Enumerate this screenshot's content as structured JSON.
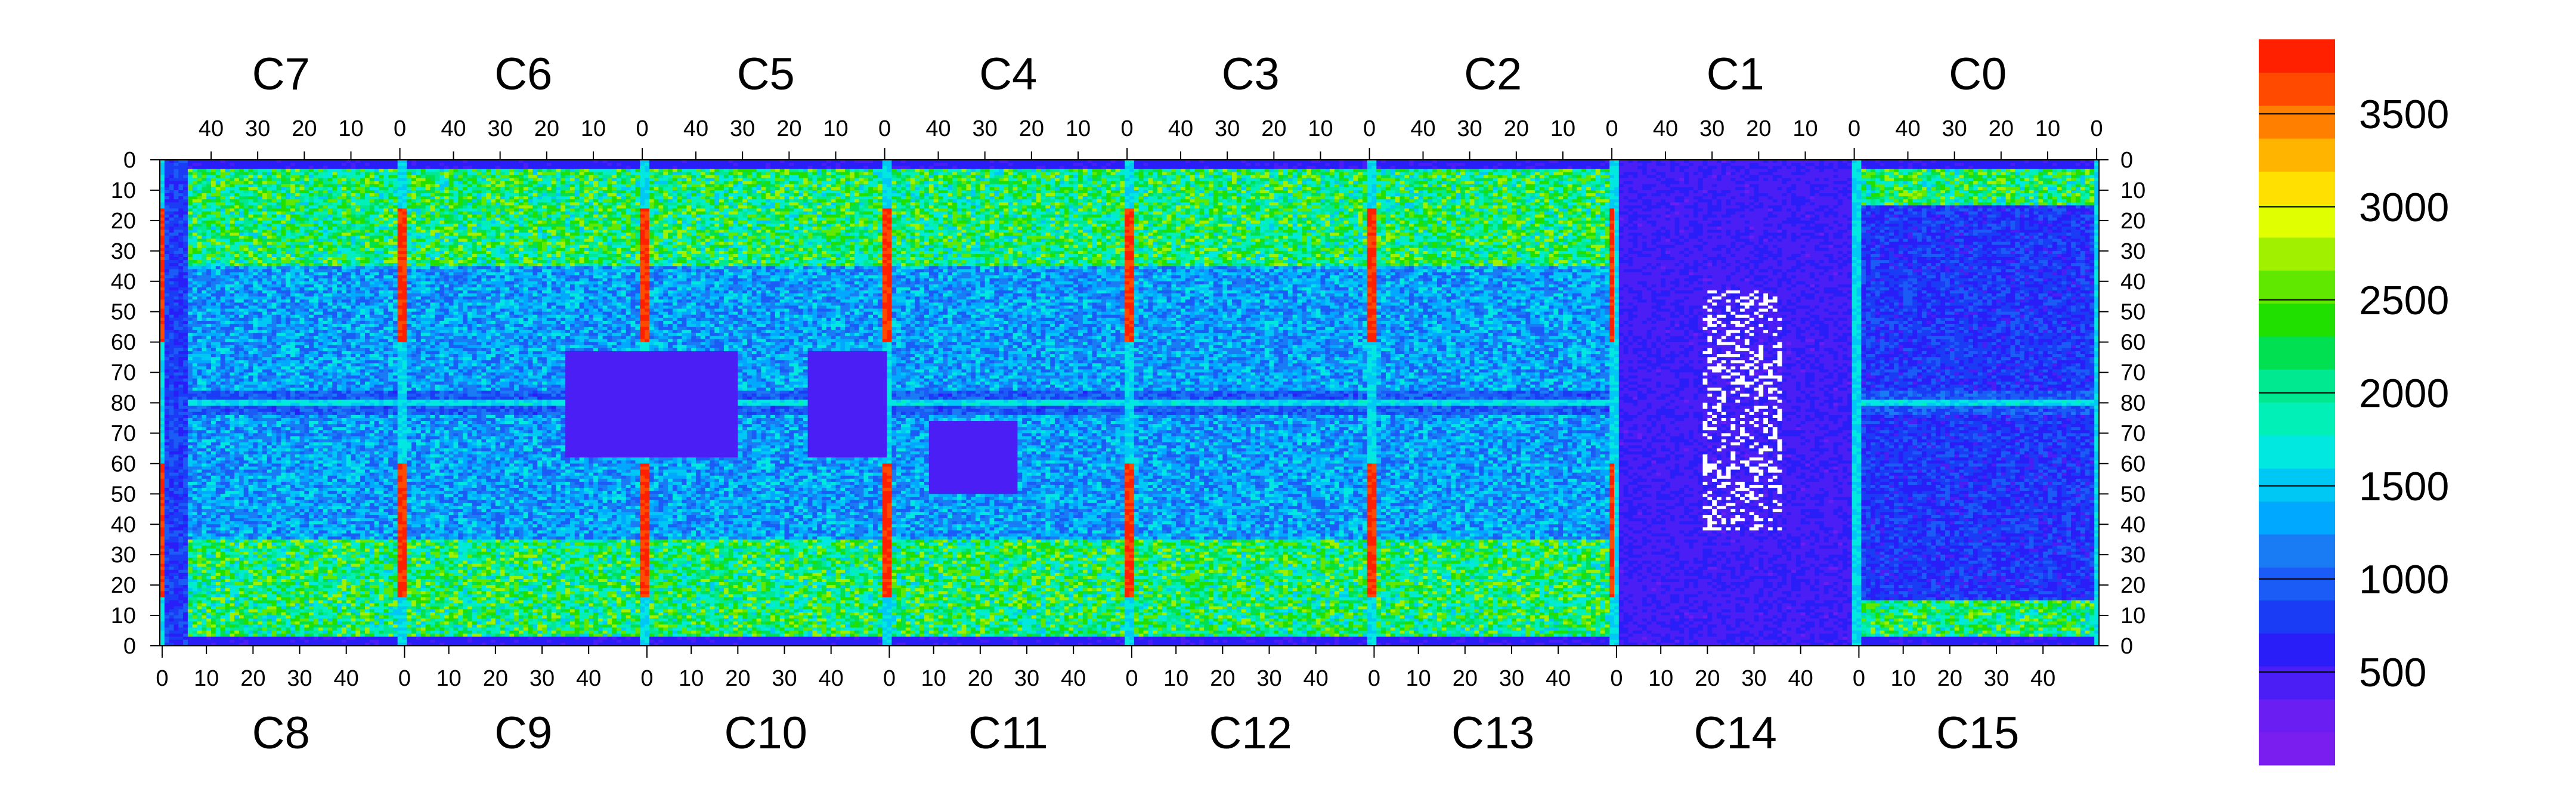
{
  "chart_data": {
    "type": "heatmap",
    "title": "",
    "xlabel": "",
    "ylabel": "",
    "color_scale": {
      "min": 0,
      "max": 3900,
      "tick_labels": [
        "500",
        "1000",
        "1500",
        "2000",
        "2500",
        "3000",
        "3500"
      ],
      "tick_values": [
        500,
        1000,
        1500,
        2000,
        2500,
        3000,
        3500
      ],
      "palette": [
        "#7a1ef0",
        "#6a1ef2",
        "#4a1ef5",
        "#2a1ef8",
        "#1a3cf5",
        "#1a5cf5",
        "#1a7cf5",
        "#00a8ff",
        "#00c8f5",
        "#00e8e0",
        "#00f0b8",
        "#00e890",
        "#00e050",
        "#20e000",
        "#60e800",
        "#a0f000",
        "#e0ff00",
        "#ffe000",
        "#ffb400",
        "#ff8000",
        "#ff4a00",
        "#ff2000"
      ]
    },
    "top_chips": [
      "C7",
      "C6",
      "C5",
      "C4",
      "C3",
      "C2",
      "C1",
      "C0"
    ],
    "bottom_chips": [
      "C8",
      "C9",
      "C10",
      "C11",
      "C12",
      "C13",
      "C14",
      "C15"
    ],
    "top_tick_labels": [
      "40",
      "30",
      "20",
      "10",
      "0"
    ],
    "bottom_tick_labels": [
      "0",
      "10",
      "20",
      "30",
      "40"
    ],
    "left_tick_labels": [
      "0",
      "10",
      "20",
      "30",
      "40",
      "50",
      "60",
      "70",
      "80",
      "70",
      "60",
      "50",
      "40",
      "30",
      "20",
      "10",
      "0"
    ],
    "right_tick_labels": [
      "0",
      "10",
      "20",
      "30",
      "40",
      "50",
      "60",
      "70",
      "80",
      "70",
      "60",
      "50",
      "40",
      "30",
      "20",
      "10",
      "0"
    ]
  }
}
